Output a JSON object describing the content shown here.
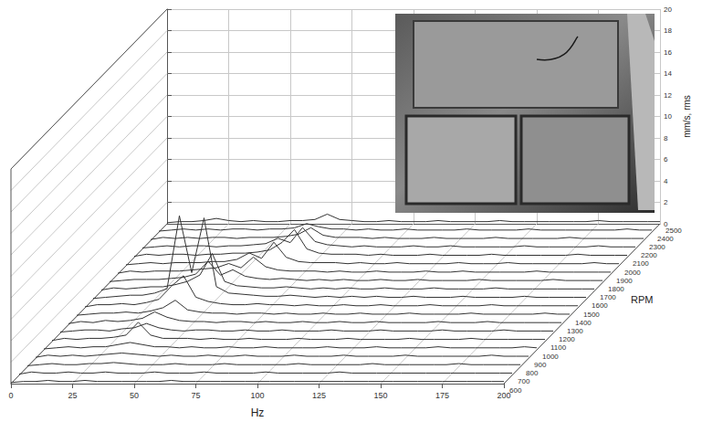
{
  "chart_data": {
    "type": "waterfall",
    "x_label": "Hz",
    "y_label": "mm/s, rms",
    "z_label": "RPM",
    "color": "#333333",
    "grid": true,
    "x": [
      0,
      5,
      10,
      15,
      20,
      25,
      30,
      35,
      40,
      45,
      50,
      55,
      60,
      65,
      70,
      75,
      80,
      85,
      90,
      95,
      100,
      105,
      110,
      115,
      120,
      125,
      130,
      135,
      140,
      145,
      150,
      155,
      160,
      165,
      170,
      175,
      180,
      185,
      190,
      195,
      200
    ],
    "xlim": [
      0,
      200
    ],
    "xticks": [
      0,
      25,
      50,
      75,
      100,
      125,
      150,
      175,
      200
    ],
    "ylim": [
      0,
      20
    ],
    "yticks": [
      0,
      2,
      4,
      6,
      8,
      10,
      12,
      14,
      16,
      18,
      20
    ],
    "series": [
      {
        "name": "600",
        "values": [
          0.1,
          0.2,
          0.2,
          0.3,
          0.2,
          0.2,
          0.3,
          0.2,
          0.2,
          0.2,
          0.2,
          0.2,
          0.2,
          0.3,
          0.2,
          0.2,
          0.2,
          0.2,
          0.2,
          0.2,
          0.2,
          0.2,
          0.2,
          0.2,
          0.2,
          0.2,
          0.2,
          0.2,
          0.2,
          0.2,
          0.2,
          0.2,
          0.2,
          0.2,
          0.2,
          0.2,
          0.2,
          0.2,
          0.2,
          0.2,
          0.2
        ]
      },
      {
        "name": "700",
        "values": [
          0.1,
          0.3,
          0.2,
          0.2,
          0.3,
          0.2,
          0.2,
          0.3,
          0.2,
          0.2,
          0.2,
          0.3,
          0.2,
          0.2,
          0.2,
          0.3,
          0.2,
          0.2,
          0.2,
          0.2,
          0.3,
          0.2,
          0.2,
          0.2,
          0.2,
          0.2,
          0.3,
          0.2,
          0.2,
          0.2,
          0.2,
          0.2,
          0.2,
          0.2,
          0.2,
          0.2,
          0.2,
          0.2,
          0.2,
          0.2,
          0.2
        ]
      },
      {
        "name": "800",
        "values": [
          0.1,
          0.2,
          0.3,
          0.2,
          0.2,
          0.3,
          0.3,
          0.4,
          0.3,
          0.2,
          0.2,
          0.2,
          0.3,
          0.2,
          0.2,
          0.2,
          0.3,
          0.2,
          0.2,
          0.2,
          0.2,
          0.2,
          0.3,
          0.2,
          0.2,
          0.2,
          0.2,
          0.2,
          0.3,
          0.2,
          0.2,
          0.2,
          0.2,
          0.2,
          0.2,
          0.3,
          0.2,
          0.2,
          0.2,
          0.2,
          0.2
        ]
      },
      {
        "name": "900",
        "values": [
          0.1,
          0.3,
          0.2,
          0.3,
          0.2,
          0.3,
          0.4,
          0.5,
          0.4,
          0.3,
          0.2,
          0.3,
          0.2,
          0.2,
          0.3,
          0.2,
          0.2,
          0.3,
          0.2,
          0.2,
          0.2,
          0.3,
          0.2,
          0.2,
          0.2,
          0.3,
          0.2,
          0.2,
          0.2,
          0.2,
          0.3,
          0.2,
          0.2,
          0.2,
          0.2,
          0.2,
          0.2,
          0.3,
          0.2,
          0.2,
          0.2
        ]
      },
      {
        "name": "1000",
        "values": [
          0.1,
          0.2,
          0.3,
          0.2,
          0.3,
          0.3,
          0.5,
          0.7,
          0.5,
          0.3,
          0.3,
          0.2,
          0.3,
          0.2,
          0.2,
          0.3,
          0.2,
          0.2,
          0.3,
          0.2,
          0.2,
          0.2,
          0.2,
          0.3,
          0.2,
          0.2,
          0.2,
          0.3,
          0.2,
          0.2,
          0.2,
          0.2,
          0.3,
          0.2,
          0.2,
          0.2,
          0.2,
          0.2,
          0.2,
          0.3,
          0.2
        ]
      },
      {
        "name": "1100",
        "values": [
          0.1,
          0.3,
          0.2,
          0.3,
          0.3,
          0.4,
          0.6,
          1.8,
          0.6,
          0.3,
          0.3,
          0.3,
          0.2,
          0.3,
          0.2,
          0.2,
          0.3,
          0.2,
          0.2,
          0.2,
          0.3,
          0.2,
          0.2,
          0.2,
          0.3,
          0.2,
          0.2,
          0.2,
          0.2,
          0.3,
          0.2,
          0.2,
          0.2,
          0.2,
          0.3,
          0.2,
          0.2,
          0.2,
          0.2,
          0.2,
          0.2
        ]
      },
      {
        "name": "1200",
        "values": [
          0.1,
          0.2,
          0.3,
          0.3,
          0.2,
          0.4,
          0.5,
          0.9,
          0.5,
          0.3,
          0.2,
          0.3,
          0.3,
          0.2,
          0.2,
          0.3,
          0.2,
          0.2,
          0.3,
          0.2,
          0.2,
          0.2,
          0.3,
          0.2,
          0.2,
          0.2,
          0.3,
          0.2,
          0.2,
          0.2,
          0.2,
          0.3,
          0.2,
          0.2,
          0.2,
          0.2,
          0.3,
          0.2,
          0.2,
          0.2,
          0.2
        ]
      },
      {
        "name": "1300",
        "values": [
          0.1,
          0.3,
          0.2,
          0.4,
          0.3,
          0.4,
          0.6,
          1.2,
          0.7,
          0.4,
          0.3,
          0.3,
          0.2,
          0.3,
          0.3,
          0.2,
          0.3,
          0.2,
          0.2,
          0.3,
          0.2,
          0.2,
          0.3,
          0.2,
          0.2,
          0.3,
          0.2,
          0.2,
          0.2,
          0.2,
          0.3,
          0.2,
          0.2,
          0.2,
          0.3,
          0.2,
          0.2,
          0.2,
          0.2,
          0.2,
          0.2
        ]
      },
      {
        "name": "1400",
        "values": [
          0.1,
          0.2,
          0.3,
          0.3,
          0.4,
          0.3,
          0.5,
          0.8,
          1.5,
          0.6,
          0.4,
          0.3,
          0.3,
          0.2,
          0.3,
          0.3,
          0.2,
          0.3,
          0.2,
          0.2,
          0.3,
          0.2,
          0.2,
          0.3,
          0.2,
          0.2,
          0.2,
          0.3,
          0.2,
          0.2,
          0.2,
          0.2,
          0.3,
          0.2,
          0.2,
          0.2,
          0.2,
          0.2,
          0.3,
          0.2,
          0.2
        ]
      },
      {
        "name": "1500",
        "values": [
          0.1,
          0.3,
          0.3,
          0.4,
          0.3,
          0.5,
          0.8,
          2.0,
          3.0,
          1.0,
          0.6,
          0.4,
          0.3,
          0.3,
          0.4,
          0.3,
          0.3,
          0.2,
          0.3,
          0.2,
          0.2,
          0.3,
          0.2,
          0.2,
          0.3,
          0.2,
          0.2,
          0.2,
          0.3,
          0.2,
          0.2,
          0.2,
          0.2,
          0.3,
          0.2,
          0.2,
          0.2,
          0.2,
          0.2,
          0.2,
          0.2
        ]
      },
      {
        "name": "1600",
        "values": [
          0.1,
          0.2,
          0.3,
          0.4,
          0.4,
          0.6,
          1.0,
          7.8,
          2.5,
          7.6,
          1.2,
          0.6,
          0.5,
          0.4,
          0.3,
          0.3,
          0.4,
          0.3,
          0.2,
          0.3,
          0.2,
          0.3,
          0.2,
          0.3,
          0.2,
          0.2,
          0.3,
          0.2,
          0.2,
          0.2,
          0.3,
          0.2,
          0.2,
          0.2,
          0.2,
          0.3,
          0.2,
          0.2,
          0.2,
          0.2,
          0.2
        ]
      },
      {
        "name": "1700",
        "values": [
          0.1,
          0.3,
          0.2,
          0.3,
          0.4,
          0.4,
          0.6,
          0.9,
          1.5,
          3.5,
          0.9,
          0.5,
          0.4,
          0.3,
          0.3,
          0.4,
          0.3,
          0.2,
          0.3,
          0.2,
          0.3,
          0.2,
          0.2,
          0.3,
          0.2,
          0.2,
          0.2,
          0.3,
          0.2,
          0.2,
          0.2,
          0.2,
          0.3,
          0.2,
          0.2,
          0.2,
          0.2,
          0.2,
          0.2,
          0.2,
          0.2
        ]
      },
      {
        "name": "1800",
        "values": [
          0.1,
          0.2,
          0.3,
          0.3,
          0.3,
          0.4,
          0.5,
          0.8,
          2.0,
          0.7,
          1.2,
          0.6,
          0.4,
          0.3,
          0.4,
          0.3,
          0.2,
          0.3,
          0.2,
          0.3,
          0.2,
          0.2,
          0.3,
          0.2,
          0.2,
          0.3,
          0.2,
          0.2,
          0.2,
          0.2,
          0.3,
          0.2,
          0.2,
          0.2,
          0.2,
          0.2,
          0.3,
          0.2,
          0.2,
          0.2,
          0.2
        ]
      },
      {
        "name": "1900",
        "values": [
          0.1,
          0.3,
          0.2,
          0.3,
          0.3,
          0.3,
          0.4,
          0.5,
          0.6,
          1.0,
          0.6,
          1.6,
          0.7,
          0.4,
          0.3,
          0.3,
          0.3,
          0.2,
          0.3,
          0.2,
          0.2,
          0.3,
          0.2,
          0.2,
          0.2,
          0.3,
          0.2,
          0.2,
          0.3,
          0.2,
          0.2,
          0.2,
          0.2,
          0.2,
          0.3,
          0.2,
          0.2,
          0.2,
          0.2,
          0.2,
          0.2
        ]
      },
      {
        "name": "2000",
        "values": [
          0.1,
          0.2,
          0.3,
          0.2,
          0.3,
          0.3,
          0.3,
          0.4,
          0.4,
          0.6,
          1.2,
          0.7,
          2.2,
          0.8,
          0.4,
          0.3,
          0.3,
          0.3,
          0.2,
          0.3,
          0.2,
          0.2,
          0.3,
          0.2,
          0.2,
          0.2,
          0.2,
          0.3,
          0.2,
          0.2,
          0.2,
          0.3,
          0.2,
          0.2,
          0.2,
          0.2,
          0.2,
          0.2,
          0.3,
          0.2,
          0.2
        ]
      },
      {
        "name": "2100",
        "values": [
          0.1,
          0.3,
          0.2,
          0.3,
          0.3,
          0.2,
          0.3,
          0.3,
          0.4,
          0.4,
          0.5,
          0.7,
          1.4,
          2.6,
          0.8,
          0.4,
          0.3,
          0.3,
          0.3,
          0.2,
          0.3,
          0.2,
          0.2,
          0.2,
          0.3,
          0.2,
          0.2,
          0.2,
          0.2,
          0.3,
          0.2,
          0.2,
          0.2,
          0.2,
          0.2,
          0.2,
          0.3,
          0.2,
          0.2,
          0.2,
          0.2
        ]
      },
      {
        "name": "2200",
        "values": [
          0.1,
          0.2,
          0.3,
          0.2,
          0.3,
          0.3,
          0.2,
          0.3,
          0.3,
          0.4,
          0.5,
          1.0,
          0.6,
          2.0,
          0.7,
          0.4,
          0.3,
          0.2,
          0.3,
          0.2,
          0.2,
          0.2,
          0.3,
          0.2,
          0.2,
          0.3,
          0.2,
          0.2,
          0.2,
          0.2,
          0.2,
          0.3,
          0.2,
          0.2,
          0.2,
          0.2,
          0.2,
          0.3,
          0.2,
          0.2,
          0.2
        ]
      },
      {
        "name": "2300",
        "values": [
          0.1,
          0.3,
          0.2,
          0.3,
          0.2,
          0.3,
          0.3,
          0.2,
          0.3,
          0.3,
          0.3,
          0.4,
          0.6,
          1.2,
          0.5,
          0.3,
          0.3,
          0.3,
          0.2,
          0.3,
          0.2,
          0.2,
          0.2,
          0.3,
          0.2,
          0.2,
          0.2,
          0.2,
          0.3,
          0.2,
          0.2,
          0.2,
          0.2,
          0.2,
          0.3,
          0.2,
          0.2,
          0.2,
          0.2,
          0.2,
          0.2
        ]
      },
      {
        "name": "2400",
        "values": [
          0.1,
          0.2,
          0.3,
          0.2,
          0.3,
          0.2,
          0.3,
          0.3,
          0.2,
          0.3,
          0.3,
          0.4,
          0.8,
          0.5,
          0.3,
          0.3,
          0.2,
          0.3,
          0.2,
          0.2,
          0.3,
          0.2,
          0.2,
          0.2,
          0.2,
          0.3,
          0.2,
          0.2,
          0.2,
          0.2,
          0.3,
          0.2,
          0.2,
          0.2,
          0.2,
          0.2,
          0.2,
          0.2,
          0.3,
          0.2,
          0.2
        ]
      },
      {
        "name": "2500",
        "values": [
          0.1,
          0.2,
          0.2,
          0.3,
          0.5,
          0.3,
          0.2,
          0.3,
          0.2,
          0.2,
          0.3,
          0.3,
          0.4,
          0.9,
          0.4,
          0.3,
          0.2,
          0.2,
          0.3,
          0.2,
          0.2,
          0.2,
          0.3,
          0.2,
          0.2,
          0.2,
          0.2,
          0.3,
          0.2,
          0.2,
          0.2,
          0.2,
          0.2,
          0.2,
          0.2,
          0.3,
          0.2,
          0.2,
          0.2,
          0.2,
          0.2
        ]
      }
    ]
  }
}
